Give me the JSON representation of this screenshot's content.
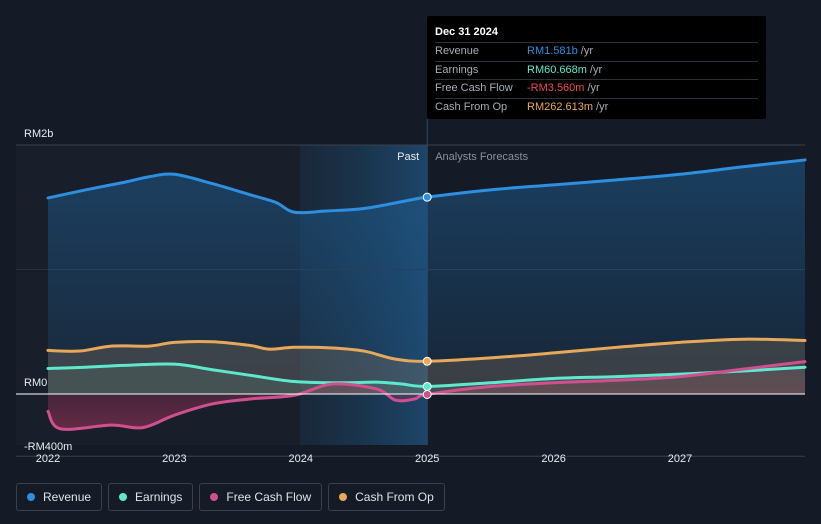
{
  "chart_data": {
    "type": "line",
    "x_axis": {
      "ticks": [
        "2022",
        "2023",
        "2024",
        "2025",
        "2026",
        "2027"
      ]
    },
    "y_axis": {
      "labels": [
        "RM2b",
        "RM0",
        "-RM400m"
      ],
      "range": [
        -400,
        2000
      ],
      "unit": "RM millions"
    },
    "divider": {
      "past_label": "Past",
      "forecast_label": "Analysts Forecasts",
      "at_year": 2025.0
    },
    "series": [
      {
        "name": "Revenue",
        "color": "#2d8fe0",
        "x": [
          2021.9,
          2022.3,
          2022.6,
          2022.8,
          2023.0,
          2023.3,
          2023.6,
          2023.8,
          2023.95,
          2024.2,
          2024.5,
          2024.8,
          2025.0,
          2025.5,
          2026.0,
          2026.5,
          2027.0,
          2027.5,
          2028.0
        ],
        "values": [
          1575,
          1640,
          1700,
          1745,
          1765,
          1690,
          1600,
          1540,
          1460,
          1470,
          1490,
          1545,
          1581,
          1640,
          1680,
          1720,
          1765,
          1825,
          1880
        ]
      },
      {
        "name": "Earnings",
        "color": "#5ee8cc",
        "x": [
          2021.9,
          2022.3,
          2022.6,
          2023.0,
          2023.3,
          2023.6,
          2023.95,
          2024.3,
          2024.6,
          2024.8,
          2025.0,
          2025.5,
          2026.0,
          2026.5,
          2027.0,
          2027.5,
          2028.0
        ],
        "values": [
          205,
          215,
          230,
          240,
          195,
          150,
          100,
          90,
          95,
          80,
          60.668,
          90,
          125,
          140,
          160,
          185,
          215
        ]
      },
      {
        "name": "Free Cash Flow",
        "color": "#d0508f",
        "x": [
          2021.9,
          2022.1,
          2022.5,
          2022.75,
          2023.0,
          2023.3,
          2023.6,
          2023.95,
          2024.25,
          2024.6,
          2024.75,
          2024.9,
          2025.0,
          2025.5,
          2026.0,
          2026.5,
          2027.0,
          2027.5,
          2028.0
        ],
        "values": [
          -140,
          -280,
          -250,
          -270,
          -170,
          -80,
          -40,
          -10,
          80,
          40,
          -50,
          -40,
          -3.56,
          60,
          90,
          110,
          140,
          200,
          260
        ]
      },
      {
        "name": "Cash From Op",
        "color": "#e8a85a",
        "x": [
          2021.9,
          2022.25,
          2022.5,
          2022.8,
          2023.0,
          2023.3,
          2023.6,
          2023.75,
          2023.95,
          2024.25,
          2024.5,
          2024.75,
          2025.0,
          2025.5,
          2026.0,
          2026.5,
          2027.0,
          2027.5,
          2028.0
        ],
        "values": [
          350,
          345,
          385,
          385,
          415,
          420,
          390,
          360,
          375,
          370,
          345,
          280,
          262.613,
          290,
          330,
          375,
          415,
          440,
          430
        ]
      }
    ]
  },
  "tooltip": {
    "date": "Dec 31 2024",
    "rows": [
      {
        "label": "Revenue",
        "value": "RM1.581b",
        "unit": "/yr",
        "color": "#2d8fe0"
      },
      {
        "label": "Earnings",
        "value": "RM60.668m",
        "unit": "/yr",
        "color": "#5ee8cc"
      },
      {
        "label": "Free Cash Flow",
        "value": "-RM3.560m",
        "unit": "/yr",
        "color": "#ef4b4b"
      },
      {
        "label": "Cash From Op",
        "value": "RM262.613m",
        "unit": "/yr",
        "color": "#e8a85a"
      }
    ]
  },
  "legend": [
    {
      "label": "Revenue",
      "color": "#2d8fe0"
    },
    {
      "label": "Earnings",
      "color": "#5ee8cc"
    },
    {
      "label": "Free Cash Flow",
      "color": "#d0508f"
    },
    {
      "label": "Cash From Op",
      "color": "#e8a85a"
    }
  ]
}
